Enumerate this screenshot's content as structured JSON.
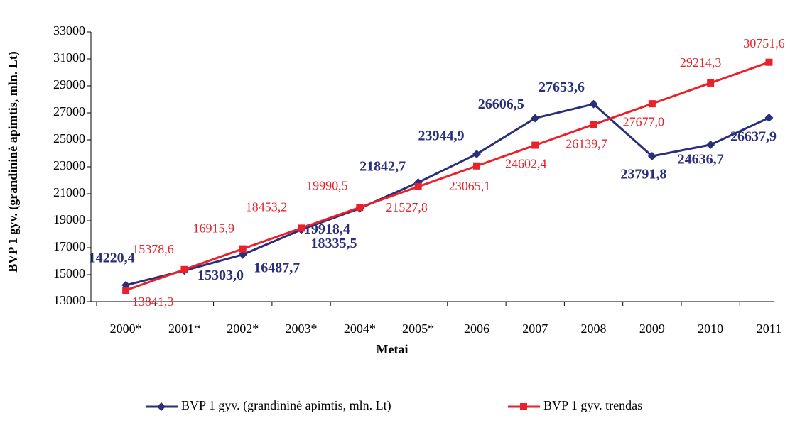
{
  "chart_data": {
    "type": "line",
    "y_label": "BVP 1 gyv. (grandininė apimtis, mln. Lt)",
    "x_label": "Metai",
    "categories": [
      "2000*",
      "2001*",
      "2002*",
      "2003*",
      "2004*",
      "2005*",
      "2006",
      "2007",
      "2008",
      "2009",
      "2010",
      "2011"
    ],
    "series": [
      {
        "name": "BVP 1 gyv. (grandininė apimtis, mln. Lt)",
        "color": "#2a2f7a",
        "marker": "diamond",
        "values": [
          14220.4,
          15303.0,
          16487.7,
          18335.5,
          19918.4,
          21842.7,
          23944.9,
          26606.5,
          27653.6,
          23791.8,
          24636.7,
          26637.9
        ],
        "value_labels": [
          "14220,4",
          "15303,0",
          "16487,7",
          "18335,5",
          "19918,4",
          "21842,7",
          "23944,9",
          "26606,5",
          "27653,6",
          "23791,8",
          "24636,7",
          "26637,9"
        ]
      },
      {
        "name": "BVP 1 gyv. trendas",
        "color": "#e8212a",
        "marker": "square",
        "values": [
          13841.3,
          15378.6,
          16915.9,
          18453.2,
          19990.5,
          21527.8,
          23065.1,
          24602.4,
          26139.7,
          27677.0,
          29214.3,
          30751.6
        ],
        "value_labels": [
          "13841,3",
          "15378,6",
          "16915,9",
          "18453,2",
          "19990,5",
          "21527,8",
          "23065,1",
          "24602,4",
          "26139,7",
          "27677,0",
          "29214,3",
          "30751,6"
        ]
      }
    ],
    "ylim": [
      13000,
      33000
    ],
    "yticks": [
      13000,
      15000,
      17000,
      19000,
      21000,
      23000,
      25000,
      27000,
      29000,
      31000,
      33000
    ],
    "legend": "bottom"
  }
}
